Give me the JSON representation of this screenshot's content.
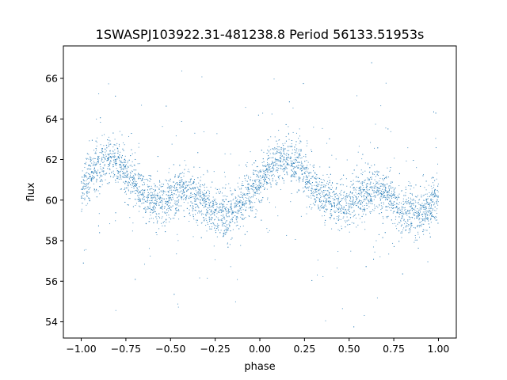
{
  "chart_data": {
    "type": "scatter",
    "title": "1SWASPJ103922.31-481238.8 Period 56133.51953s",
    "xlabel": "phase",
    "ylabel": "flux",
    "xlim": [
      -1.1,
      1.1
    ],
    "ylim": [
      53.2,
      67.6
    ],
    "xticks": [
      -1.0,
      -0.75,
      -0.5,
      -0.25,
      0.0,
      0.25,
      0.5,
      0.75,
      1.0
    ],
    "xtick_labels": [
      "−1.00",
      "−0.75",
      "−0.50",
      "−0.25",
      "0.00",
      "0.25",
      "0.50",
      "0.75",
      "1.00"
    ],
    "yticks": [
      54,
      56,
      58,
      60,
      62,
      64,
      66
    ],
    "ytick_labels": [
      "54",
      "56",
      "58",
      "60",
      "62",
      "64",
      "66"
    ],
    "grid": false,
    "legend": "none",
    "point_color": "#1f77b4",
    "series": [
      {
        "phase": [
          -1.0,
          -0.95,
          -0.9,
          -0.85,
          -0.8,
          -0.75,
          -0.7,
          -0.65,
          -0.6,
          -0.55,
          -0.5,
          -0.45,
          -0.4,
          -0.35,
          -0.3,
          -0.25,
          -0.2,
          -0.15,
          -0.1,
          -0.05,
          0.0,
          0.05,
          0.1,
          0.15,
          0.2,
          0.25,
          0.3,
          0.35,
          0.4,
          0.45,
          0.5,
          0.55,
          0.6,
          0.65,
          0.7,
          0.75,
          0.8,
          0.85,
          0.9,
          0.95,
          1.0
        ],
        "flux": [
          60.5,
          61.2,
          61.7,
          62.0,
          61.9,
          61.4,
          60.8,
          60.3,
          60.0,
          59.9,
          60.1,
          60.4,
          60.5,
          60.2,
          59.7,
          59.4,
          59.3,
          59.4,
          59.8,
          60.4,
          61.0,
          61.5,
          61.9,
          62.0,
          61.8,
          61.3,
          60.7,
          60.2,
          59.9,
          59.8,
          59.9,
          60.2,
          60.4,
          60.5,
          60.3,
          59.9,
          59.5,
          59.3,
          59.3,
          59.6,
          60.1
        ]
      }
    ]
  }
}
